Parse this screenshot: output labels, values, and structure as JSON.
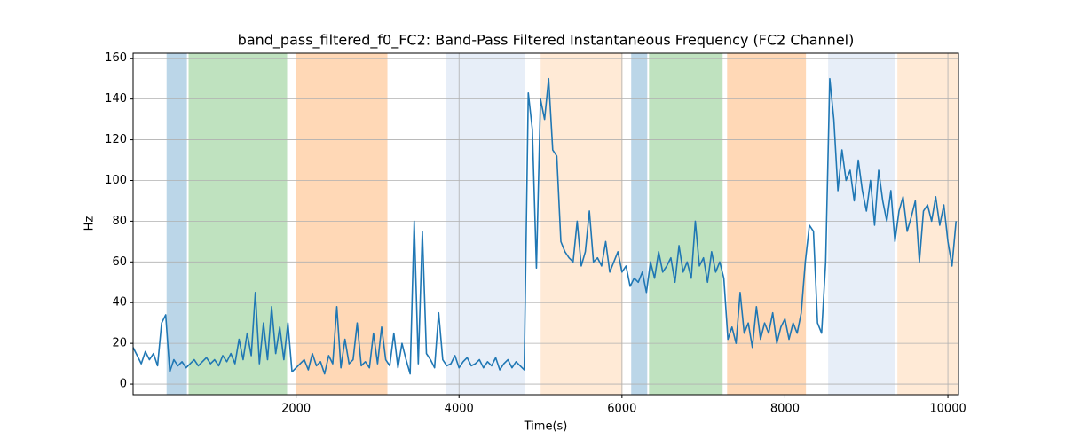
{
  "chart_data": {
    "type": "line",
    "title": "band_pass_filtered_f0_FC2: Band-Pass Filtered Instantaneous Frequency (FC2 Channel)",
    "xlabel": "Time(s)",
    "ylabel": "Hz",
    "xlim": [
      0,
      10130
    ],
    "ylim": [
      -5.2,
      162.5
    ],
    "xticks": [
      2000,
      4000,
      6000,
      8000,
      10000
    ],
    "yticks": [
      0,
      20,
      40,
      60,
      80,
      100,
      120,
      140,
      160
    ],
    "grid": true,
    "spans": [
      {
        "start": 411,
        "end": 660,
        "color": "#1f77b4"
      },
      {
        "start": 681,
        "end": 1890,
        "color": "#2ca02c"
      },
      {
        "start": 1997,
        "end": 3121,
        "color": "#ff7f0e"
      },
      {
        "start": 3839,
        "end": 4808,
        "color": "#aec7e8"
      },
      {
        "start": 5002,
        "end": 6007,
        "color": "#ffbb78"
      },
      {
        "start": 6113,
        "end": 6310,
        "color": "#1f77b4"
      },
      {
        "start": 6332,
        "end": 7235,
        "color": "#2ca02c"
      },
      {
        "start": 7290,
        "end": 8258,
        "color": "#ff7f0e"
      },
      {
        "start": 8530,
        "end": 9347,
        "color": "#aec7e8"
      },
      {
        "start": 9380,
        "end": 10130,
        "color": "#ffbb78"
      }
    ],
    "span_alpha": 0.3,
    "x": [
      0,
      50,
      100,
      150,
      200,
      250,
      300,
      350,
      400,
      450,
      500,
      550,
      600,
      650,
      700,
      750,
      800,
      850,
      900,
      950,
      1000,
      1050,
      1100,
      1150,
      1200,
      1250,
      1300,
      1350,
      1400,
      1450,
      1500,
      1550,
      1600,
      1650,
      1700,
      1750,
      1800,
      1850,
      1900,
      1950,
      2000,
      2050,
      2100,
      2150,
      2200,
      2250,
      2300,
      2350,
      2400,
      2450,
      2500,
      2550,
      2600,
      2650,
      2700,
      2750,
      2800,
      2850,
      2900,
      2950,
      3000,
      3050,
      3100,
      3150,
      3200,
      3250,
      3300,
      3350,
      3400,
      3450,
      3500,
      3550,
      3600,
      3650,
      3700,
      3750,
      3800,
      3850,
      3900,
      3950,
      4000,
      4050,
      4100,
      4150,
      4200,
      4250,
      4300,
      4350,
      4400,
      4450,
      4500,
      4550,
      4600,
      4650,
      4700,
      4750,
      4800,
      4850,
      4900,
      4950,
      5000,
      5050,
      5100,
      5150,
      5200,
      5250,
      5300,
      5350,
      5400,
      5450,
      5500,
      5550,
      5600,
      5650,
      5700,
      5750,
      5800,
      5850,
      5900,
      5950,
      6000,
      6050,
      6100,
      6150,
      6200,
      6250,
      6300,
      6350,
      6400,
      6450,
      6500,
      6550,
      6600,
      6650,
      6700,
      6750,
      6800,
      6850,
      6900,
      6950,
      7000,
      7050,
      7100,
      7150,
      7200,
      7250,
      7300,
      7350,
      7400,
      7450,
      7500,
      7550,
      7600,
      7650,
      7700,
      7750,
      7800,
      7850,
      7900,
      7950,
      8000,
      8050,
      8100,
      8150,
      8200,
      8250,
      8300,
      8350,
      8400,
      8450,
      8500,
      8550,
      8600,
      8650,
      8700,
      8750,
      8800,
      8850,
      8900,
      8950,
      9000,
      9050,
      9100,
      9150,
      9200,
      9250,
      9300,
      9350,
      9400,
      9450,
      9500,
      9550,
      9600,
      9650,
      9700,
      9750,
      9800,
      9850,
      9900,
      9950,
      10000,
      10050,
      10100
    ],
    "series": [
      {
        "color": "#1f77b4",
        "values": [
          18,
          14,
          10,
          16,
          12,
          15,
          9,
          30,
          34,
          6,
          12,
          9,
          11,
          8,
          10,
          12,
          9,
          11,
          13,
          10,
          12,
          9,
          14,
          11,
          15,
          10,
          22,
          12,
          25,
          14,
          45,
          10,
          30,
          12,
          38,
          15,
          28,
          12,
          30,
          6,
          8,
          10,
          12,
          7,
          15,
          9,
          11,
          5,
          14,
          10,
          38,
          8,
          22,
          10,
          12,
          30,
          9,
          11,
          8,
          25,
          10,
          28,
          12,
          9,
          25,
          8,
          20,
          12,
          5,
          80,
          10,
          75,
          15,
          12,
          8,
          35,
          12,
          9,
          10,
          14,
          8,
          11,
          13,
          9,
          10,
          12,
          8,
          11,
          9,
          13,
          7,
          10,
          12,
          8,
          11,
          9,
          7,
          143,
          125,
          57,
          140,
          130,
          150,
          115,
          112,
          70,
          65,
          62,
          60,
          80,
          58,
          65,
          85,
          60,
          62,
          58,
          70,
          55,
          60,
          65,
          55,
          58,
          48,
          52,
          50,
          55,
          45,
          60,
          52,
          65,
          55,
          58,
          62,
          50,
          68,
          55,
          60,
          52,
          80,
          58,
          62,
          50,
          65,
          55,
          60,
          52,
          22,
          28,
          20,
          45,
          25,
          30,
          18,
          38,
          22,
          30,
          25,
          35,
          20,
          28,
          32,
          22,
          30,
          25,
          35,
          60,
          78,
          75,
          30,
          25,
          60,
          150,
          130,
          95,
          115,
          100,
          105,
          90,
          110,
          95,
          85,
          100,
          78,
          105,
          90,
          80,
          95,
          70,
          85,
          92,
          75,
          82,
          90,
          60,
          85,
          88,
          80,
          92,
          78,
          88,
          70,
          58,
          80
        ]
      }
    ]
  }
}
